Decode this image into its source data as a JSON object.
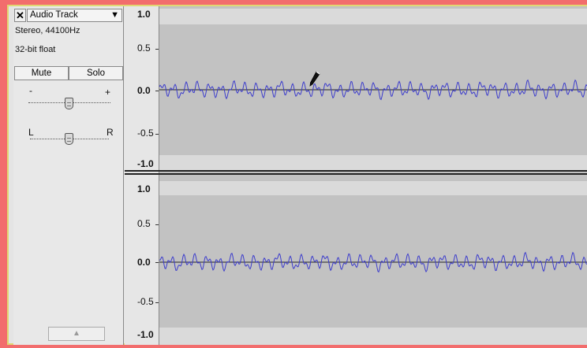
{
  "track": {
    "close_label": "✕",
    "name": "Audio Track",
    "menu_arrow": "▼",
    "format": "Stereo, 44100Hz",
    "sample_type": "32-bit float",
    "mute_label": "Mute",
    "solo_label": "Solo",
    "gain_minus": "-",
    "gain_plus": "+",
    "pan_left": "L",
    "pan_right": "R",
    "collapse_arrow": "▲"
  },
  "channels": [
    {
      "ticks": [
        "1.0",
        "0.5",
        "0.0",
        "-0.5",
        "-1.0"
      ]
    },
    {
      "ticks": [
        "1.0",
        "0.5",
        "0.0",
        "-0.5",
        "-1.0"
      ]
    }
  ],
  "colors": {
    "background": "#f26d6d",
    "waveform": "#3c3ccc",
    "clip_band": "#dadada",
    "wave_bg": "#c2c2c2"
  },
  "icons": {
    "draw_cursor": "pencil-icon",
    "close": "close-icon",
    "dropdown": "chevron-down-icon",
    "collapse": "chevron-up-icon"
  }
}
